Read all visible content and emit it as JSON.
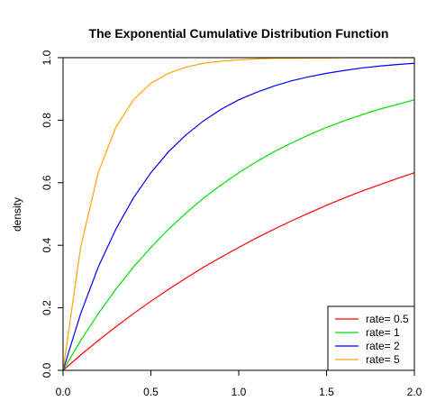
{
  "chart_data": {
    "type": "line",
    "title": "The Exponential Cumulative Distribution Function",
    "xlabel": "",
    "ylabel": "density",
    "xlim": [
      0,
      2
    ],
    "ylim": [
      0,
      1
    ],
    "x_ticks": [
      "0.0",
      "0.5",
      "1.0",
      "1.5",
      "2.0"
    ],
    "y_ticks": [
      "0.0",
      "0.2",
      "0.4",
      "0.6",
      "0.8",
      "1.0"
    ],
    "grid": false,
    "legend_position": "bottom-right",
    "x": [
      0,
      0.1,
      0.2,
      0.3,
      0.4,
      0.5,
      0.6,
      0.7,
      0.8,
      0.9,
      1.0,
      1.1,
      1.2,
      1.3,
      1.4,
      1.5,
      1.6,
      1.7,
      1.8,
      1.9,
      2.0
    ],
    "series": [
      {
        "name": "rate= 0.5",
        "color": "#ff0000",
        "values": [
          0,
          0.049,
          0.095,
          0.139,
          0.181,
          0.221,
          0.259,
          0.295,
          0.33,
          0.362,
          0.393,
          0.423,
          0.451,
          0.478,
          0.503,
          0.528,
          0.551,
          0.573,
          0.593,
          0.613,
          0.632
        ]
      },
      {
        "name": "rate= 1",
        "color": "#00e000",
        "values": [
          0,
          0.095,
          0.181,
          0.259,
          0.33,
          0.393,
          0.451,
          0.503,
          0.551,
          0.593,
          0.632,
          0.667,
          0.699,
          0.727,
          0.753,
          0.777,
          0.798,
          0.817,
          0.835,
          0.85,
          0.865
        ]
      },
      {
        "name": "rate= 2",
        "color": "#0000ff",
        "values": [
          0,
          0.181,
          0.33,
          0.451,
          0.551,
          0.632,
          0.699,
          0.753,
          0.798,
          0.835,
          0.865,
          0.889,
          0.909,
          0.926,
          0.939,
          0.95,
          0.959,
          0.967,
          0.973,
          0.978,
          0.982
        ]
      },
      {
        "name": "rate= 5",
        "color": "#ffa500",
        "values": [
          0,
          0.393,
          0.632,
          0.777,
          0.865,
          0.918,
          0.95,
          0.97,
          0.982,
          0.989,
          0.993,
          0.996,
          0.998,
          0.998,
          0.999,
          0.999,
          1.0,
          1.0,
          1.0,
          1.0,
          1.0
        ]
      }
    ]
  }
}
